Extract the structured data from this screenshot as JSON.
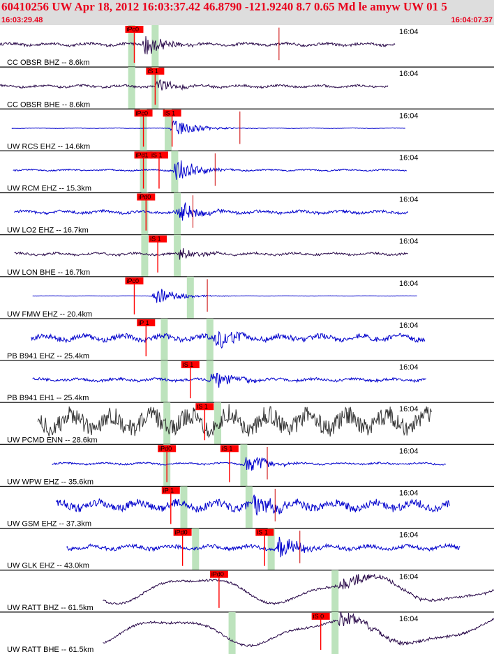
{
  "header": {
    "title": "60410256 UW Apr 18, 2012 16:03:37.42   46.8790 -121.9240  8.7 0.65 Md le amyw UW 01   5",
    "time_start": "16:03:29.48",
    "time_end": "16:04:07.37"
  },
  "colors": {
    "header_bg": "#dddddd",
    "header_text": "#e8001c",
    "pick_box": "#ff0000",
    "pick_window": "#bde3bd",
    "trace_blue": "#0000cc",
    "trace_purple": "#2a0a4a",
    "trace_gray": "#333333",
    "red_marker": "#cc0000"
  },
  "chart_data": {
    "type": "line",
    "x_range_seconds": [
      0,
      37.89
    ],
    "minute_label": "16:04",
    "traces": [
      {
        "label": "CC OBSR BHZ -- 8.6km",
        "color": "trace_purple",
        "trace_start": 0.0,
        "trace_end": 30.3,
        "picks": [
          {
            "text": "iPc0",
            "t": 10.3
          }
        ],
        "windows": [
          10.1,
          11.9
        ],
        "event": 11.0,
        "markers": [
          21.4
        ],
        "amp": 0.55,
        "noise": 0.06,
        "kind": "event"
      },
      {
        "label": "CC OBSR BHE -- 8.6km",
        "color": "trace_purple",
        "trace_start": 0.0,
        "trace_end": 29.8,
        "picks": [
          {
            "text": "iS 1",
            "t": 11.9
          }
        ],
        "windows": [
          10.1,
          11.9
        ],
        "event": 11.9,
        "markers": [],
        "amp": 0.4,
        "noise": 0.05,
        "kind": "event"
      },
      {
        "label": "UW RCS EHZ -- 14.6km",
        "color": "trace_blue",
        "trace_start": 0.9,
        "trace_end": 31.1,
        "picks": [
          {
            "text": "iPc0",
            "t": 11.0
          },
          {
            "text": "iS 1",
            "t": 13.2
          }
        ],
        "windows": [
          11.0,
          12.9
        ],
        "event": 13.2,
        "markers": [
          18.4
        ],
        "amp": 0.5,
        "noise": 0.01,
        "kind": "event"
      },
      {
        "label": "UW RCM EHZ -- 15.3km",
        "color": "trace_blue",
        "trace_start": 1.0,
        "trace_end": 31.2,
        "picks": [
          {
            "text": "iPd1",
            "t": 11.0
          },
          {
            "text": "iS 1",
            "t": 12.2
          }
        ],
        "windows": [
          11.0,
          13.4
        ],
        "event": 13.4,
        "markers": [
          16.5
        ],
        "amp": 0.6,
        "noise": 0.03,
        "kind": "event"
      },
      {
        "label": "UW LO2 EHZ -- 16.7km",
        "color": "trace_blue",
        "trace_start": 1.1,
        "trace_end": 31.3,
        "picks": [
          {
            "text": "iPd0",
            "t": 11.2
          }
        ],
        "windows": [
          11.1,
          13.6
        ],
        "event": 13.6,
        "markers": [
          14.8
        ],
        "amp": 0.55,
        "noise": 0.06,
        "kind": "event"
      },
      {
        "label": "UW LON BHE -- 16.7km",
        "color": "trace_purple",
        "trace_start": 1.1,
        "trace_end": 31.3,
        "picks": [
          {
            "text": "iS 1",
            "t": 12.1
          }
        ],
        "windows": [
          11.1,
          13.6
        ],
        "event": 13.6,
        "markers": [],
        "amp": 0.3,
        "noise": 0.05,
        "kind": "event"
      },
      {
        "label": "UW FMW EHZ -- 20.4km",
        "color": "trace_blue",
        "trace_start": 2.5,
        "trace_end": 32.0,
        "picks": [
          {
            "text": "iPc0",
            "t": 10.3
          }
        ],
        "windows": [
          14.6
        ],
        "event": 11.8,
        "markers": [
          15.9
        ],
        "amp": 0.45,
        "noise": 0.005,
        "kind": "event"
      },
      {
        "label": "PB B941 EHZ -- 25.4km",
        "color": "trace_blue",
        "trace_start": 2.4,
        "trace_end": 32.6,
        "picks": [
          {
            "text": "iP 1",
            "t": 11.2
          }
        ],
        "windows": [
          12.6,
          16.1
        ],
        "event": 16.5,
        "markers": [],
        "amp": 0.55,
        "noise": 0.12,
        "kind": "event"
      },
      {
        "label": "PB B941 EH1 -- 25.4km",
        "color": "trace_blue",
        "trace_start": 2.5,
        "trace_end": 32.7,
        "picks": [
          {
            "text": "iS 1",
            "t": 14.6
          }
        ],
        "windows": [
          12.6,
          16.1
        ],
        "event": 16.1,
        "markers": [],
        "amp": 0.5,
        "noise": 0.06,
        "kind": "event"
      },
      {
        "label": "UW PCMD ENN -- 28.6km",
        "color": "trace_gray",
        "trace_start": 2.9,
        "trace_end": 33.1,
        "picks": [
          {
            "text": "iS 1",
            "t": 15.7
          }
        ],
        "windows": [
          12.8,
          16.7
        ],
        "event": 16.9,
        "markers": [],
        "amp": 0.45,
        "noise": 0.42,
        "kind": "noise"
      },
      {
        "label": "UW WPW EHZ -- 35.6km",
        "color": "trace_blue",
        "trace_start": 4.0,
        "trace_end": 34.2,
        "picks": [
          {
            "text": "iPd0",
            "t": 12.8
          },
          {
            "text": "iS 1",
            "t": 17.6
          }
        ],
        "windows": [
          12.8,
          18.7
        ],
        "event": 18.8,
        "markers": [
          20.5
        ],
        "amp": 0.5,
        "noise": 0.04,
        "kind": "event"
      },
      {
        "label": "UW GSM EHZ -- 37.3km",
        "color": "trace_blue",
        "trace_start": 4.3,
        "trace_end": 34.5,
        "picks": [
          {
            "text": "iP 1",
            "t": 13.1
          }
        ],
        "windows": [
          14.1,
          19.1
        ],
        "event": 19.4,
        "markers": [
          21.1
        ],
        "amp": 0.6,
        "noise": 0.18,
        "kind": "event"
      },
      {
        "label": "UW GLK EHZ -- 43.0km",
        "color": "trace_blue",
        "trace_start": 5.1,
        "trace_end": 35.3,
        "picks": [
          {
            "text": "iPd0",
            "t": 14.0
          },
          {
            "text": "iS 1",
            "t": 20.3
          }
        ],
        "windows": [
          15.0,
          20.8
        ],
        "event": 21.3,
        "markers": [
          23.0
        ],
        "amp": 0.55,
        "noise": 0.09,
        "kind": "event"
      },
      {
        "label": "UW RATT BHZ -- 61.5km",
        "color": "trace_purple",
        "trace_start": 7.9,
        "trace_end": 37.9,
        "picks": [
          {
            "text": "iPd0",
            "t": 16.8
          }
        ],
        "windows": [
          25.7
        ],
        "event": 25.9,
        "markers": [],
        "amp": 0.45,
        "noise": 0.05,
        "kind": "swell"
      },
      {
        "label": "UW RATT BHE -- 61.5km",
        "color": "trace_purple",
        "trace_start": 7.9,
        "trace_end": 37.9,
        "picks": [
          {
            "text": "iS 0",
            "t": 24.6
          }
        ],
        "windows": [
          17.8,
          25.7
        ],
        "event": 25.9,
        "markers": [],
        "amp": 0.45,
        "noise": 0.05,
        "kind": "swell"
      }
    ]
  }
}
